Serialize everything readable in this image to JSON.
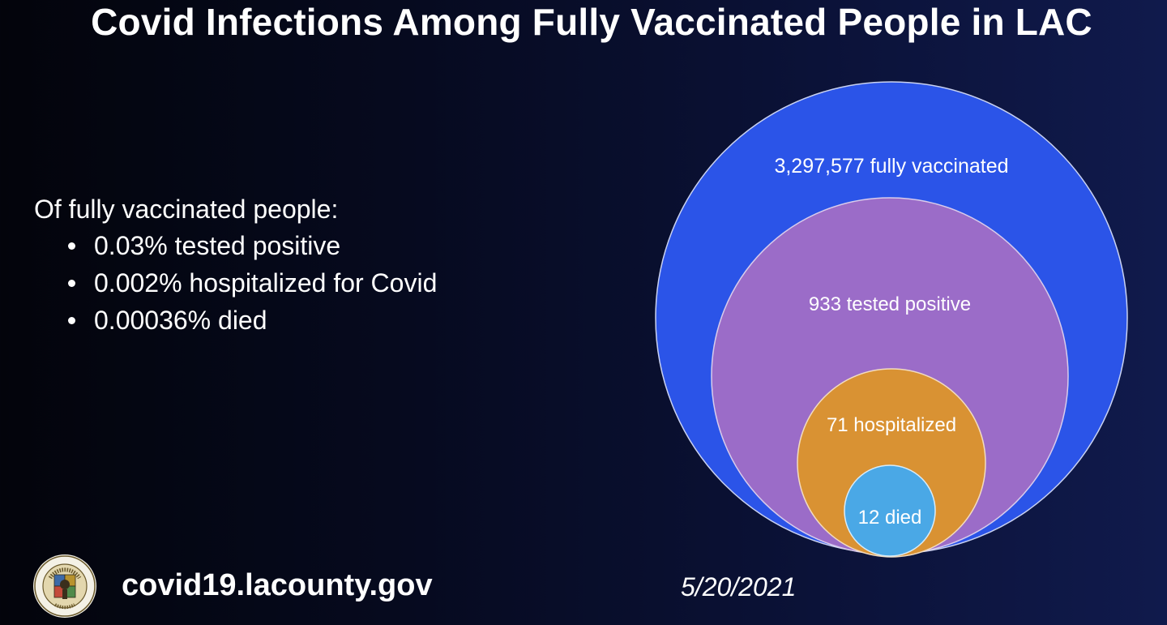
{
  "title": "Covid Infections Among Fully Vaccinated People in LAC",
  "stats": {
    "heading": "Of fully vaccinated people:",
    "items": [
      "0.03% tested positive",
      "0.002% hospitalized for Covid",
      "0.00036% died"
    ]
  },
  "diagram": {
    "type": "nested-circles",
    "circles": [
      {
        "value": 3297577,
        "label": "3,297,577 fully vaccinated",
        "color": "#2b54e8"
      },
      {
        "value": 933,
        "label": "933 tested positive",
        "color": "#9b6cc8"
      },
      {
        "value": 71,
        "label": "71 hospitalized",
        "color": "#d99233"
      },
      {
        "value": 12,
        "label": "12 died",
        "color": "#4aa8e6"
      }
    ]
  },
  "footer": {
    "logo_icon": "county-seal-icon",
    "logo_text": "COUNTY OF LOS ANGELES · CALIFORNIA",
    "url": "covid19.lacounty.gov",
    "date": "5/20/2021"
  }
}
